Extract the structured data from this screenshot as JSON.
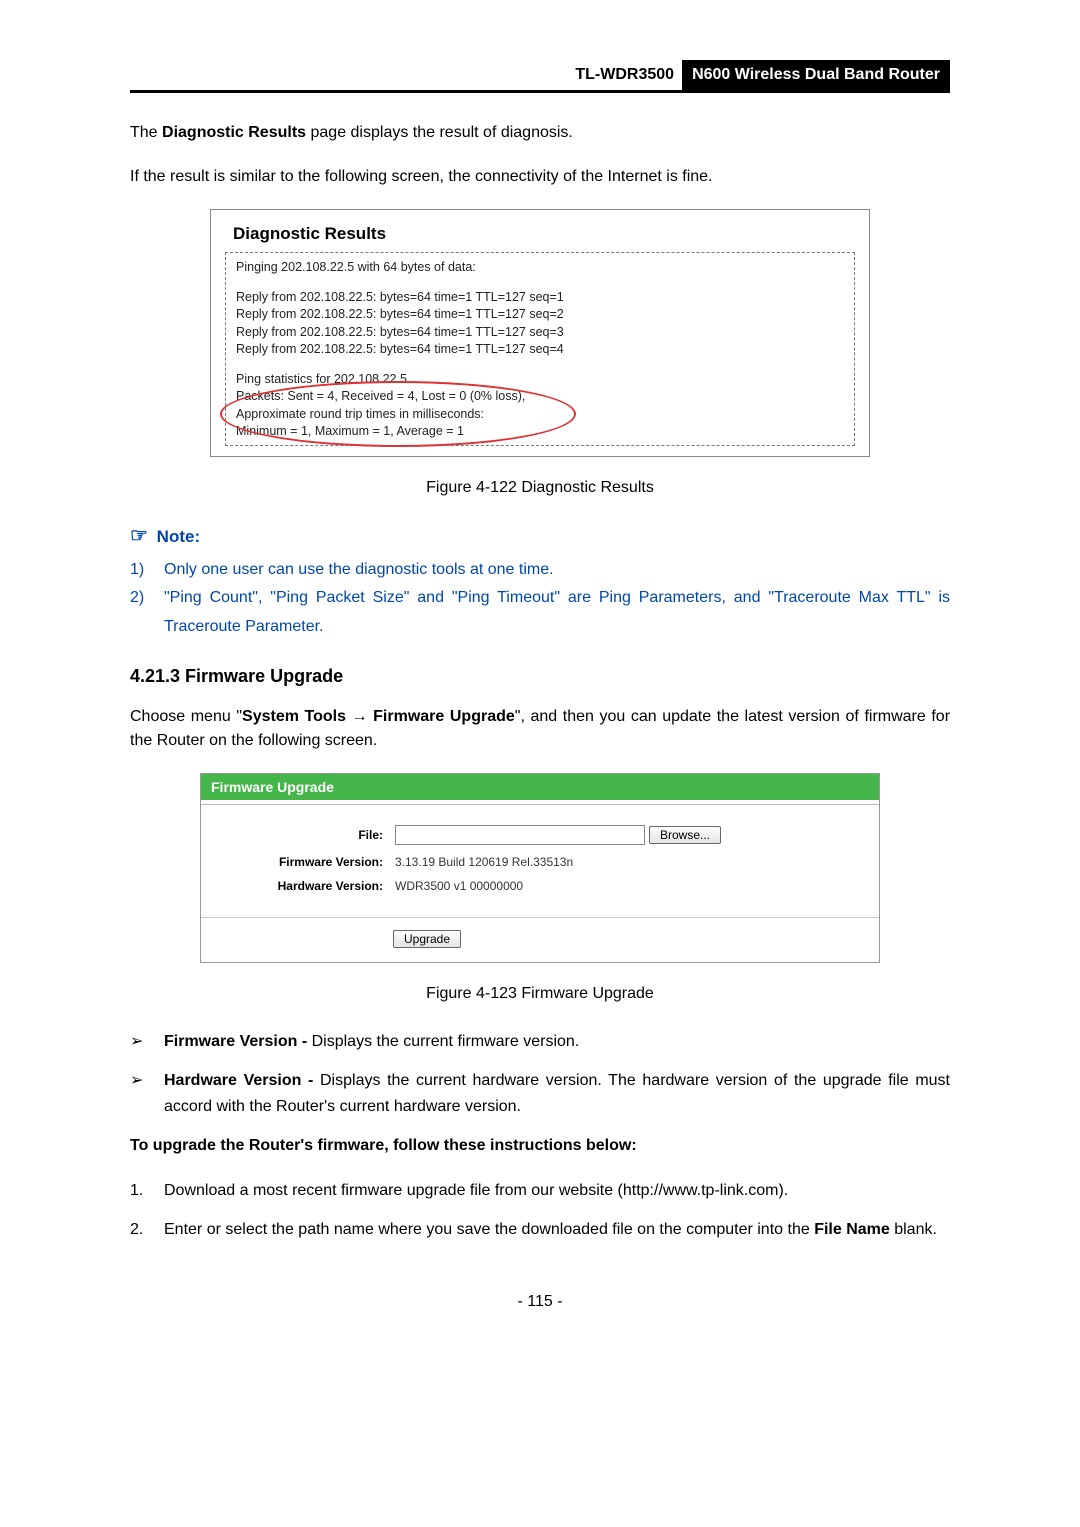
{
  "header": {
    "model": "TL-WDR3500",
    "desc": "N600 Wireless Dual Band Router"
  },
  "intro1_a": "The ",
  "intro1_b": "Diagnostic Results",
  "intro1_c": " page displays the result of diagnosis.",
  "intro2": "If the result is similar to the following screen, the connectivity of the Internet is fine.",
  "diag": {
    "title": "Diagnostic Results",
    "ping_header": "Pinging 202.108.22.5 with 64 bytes of data:",
    "replies": [
      "Reply from 202.108.22.5:  bytes=64  time=1  TTL=127  seq=1",
      "Reply from 202.108.22.5:  bytes=64  time=1  TTL=127  seq=2",
      "Reply from 202.108.22.5:  bytes=64  time=1  TTL=127  seq=3",
      "Reply from 202.108.22.5:  bytes=64  time=1  TTL=127  seq=4"
    ],
    "stats": [
      "Ping statistics for 202.108.22.5",
      "  Packets: Sent = 4, Received = 4, Lost = 0 (0% loss),",
      "Approximate round trip times in milliseconds:",
      "  Minimum = 1, Maximum = 1, Average = 1"
    ],
    "highlight": {
      "color": "#d33"
    }
  },
  "fig1": "Figure 4-122 Diagnostic Results",
  "note": {
    "label": "Note:",
    "items": [
      "Only one user can use the diagnostic tools at one time.",
      "\"Ping Count\", \"Ping Packet Size\" and \"Ping Timeout\" are Ping Parameters, and \"Traceroute Max TTL\" is Traceroute Parameter."
    ],
    "color": "#0047ab"
  },
  "section": "4.21.3  Firmware Upgrade",
  "choose_a": "Choose menu \"",
  "choose_b": "System Tools",
  "choose_arrow": " → ",
  "choose_c": "Firmware Upgrade",
  "choose_d": "\", and then you can update the latest version of firmware for the Router on the following screen.",
  "fw": {
    "header": "Firmware Upgrade",
    "file_label": "File:",
    "browse": "Browse...",
    "fw_label": "Firmware Version:",
    "fw_value": "3.13.19 Build 120619 Rel.33513n",
    "hw_label": "Hardware Version:",
    "hw_value": "WDR3500 v1 00000000",
    "upgrade": "Upgrade",
    "header_bg": "#45b649"
  },
  "fig2": "Figure 4-123 Firmware Upgrade",
  "bullets": [
    {
      "b": "Firmware Version - ",
      "t": "Displays the current firmware version."
    },
    {
      "b": "Hardware Version - ",
      "t": "Displays the current hardware version. The hardware version of the upgrade file must accord with the Router's current hardware version."
    }
  ],
  "upgrade_instr": "To upgrade the Router's firmware, follow these instructions below:",
  "steps": [
    "Download a most recent firmware upgrade file from our website (http://www.tp-link.com).",
    {
      "a": "Enter or select the path name where you save the downloaded file on the computer into the ",
      "b": "File Name",
      "c": " blank."
    }
  ],
  "page": "- 115 -"
}
